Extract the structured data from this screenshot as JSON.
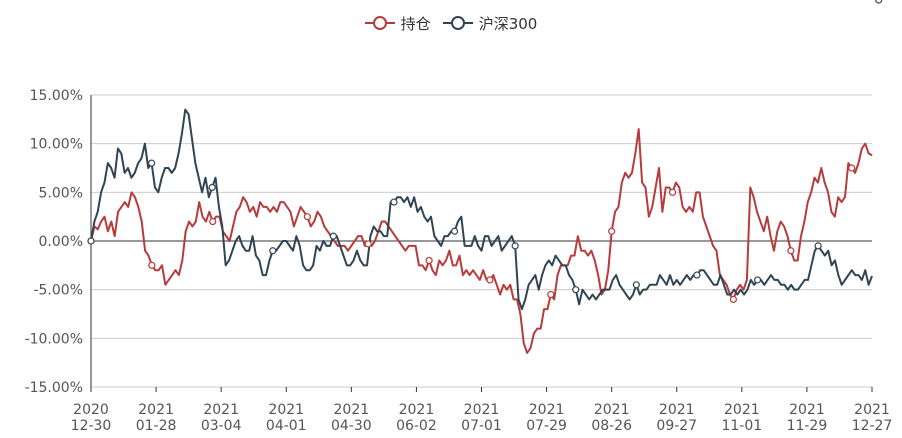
{
  "colors": {
    "series_holding": "#b83b3b",
    "series_csi300": "#2f4554",
    "axis": "#333333",
    "grid": "#cccccc",
    "label": "#555555",
    "background": "#ffffff"
  },
  "chart_data": {
    "type": "line",
    "title": "",
    "xlabel": "",
    "ylabel": "",
    "ylim": [
      -15,
      15
    ],
    "y_ticks": [
      15,
      10,
      5,
      0,
      -5,
      -10,
      -15
    ],
    "y_tick_labels": [
      "15.00%",
      "10.00%",
      "5.00%",
      "0.00%",
      "-5.00%",
      "-10.00%",
      "-15.00%"
    ],
    "x_ticks": [
      {
        "line1": "2020",
        "line2": "12-30"
      },
      {
        "line1": "2021",
        "line2": "01-28"
      },
      {
        "line1": "2021",
        "line2": "03-04"
      },
      {
        "line1": "2021",
        "line2": "04-01"
      },
      {
        "line1": "2021",
        "line2": "04-30"
      },
      {
        "line1": "2021",
        "line2": "06-02"
      },
      {
        "line1": "2021",
        "line2": "07-01"
      },
      {
        "line1": "2021",
        "line2": "07-29"
      },
      {
        "line1": "2021",
        "line2": "08-26"
      },
      {
        "line1": "2021",
        "line2": "09-27"
      },
      {
        "line1": "2021",
        "line2": "11-01"
      },
      {
        "line1": "2021",
        "line2": "11-29"
      },
      {
        "line1": "2021",
        "line2": "12-27"
      }
    ],
    "legend_position": "top-center",
    "series": [
      {
        "name": "持仓",
        "color_key": "series_holding",
        "values": [
          0,
          1.5,
          1.2,
          2.0,
          2.5,
          1.0,
          2.0,
          0.5,
          3.0,
          3.5,
          4.0,
          3.5,
          5.0,
          4.5,
          3.5,
          2.0,
          -1.0,
          -1.5,
          -2.5,
          -3.0,
          -3.0,
          -2.5,
          -4.5,
          -4.0,
          -3.5,
          -3.0,
          -3.5,
          -2.0,
          1.0,
          2.0,
          1.5,
          2.0,
          4.0,
          2.5,
          2.0,
          3.0,
          2.0,
          2.5,
          2.5,
          1.0,
          0.5,
          0,
          1.5,
          3.0,
          3.5,
          4.5,
          4.0,
          3.0,
          3.5,
          2.5,
          4.0,
          3.5,
          3.5,
          3.0,
          3.5,
          3.0,
          4.0,
          4.0,
          3.5,
          3.0,
          1.5,
          2.5,
          3.5,
          3.0,
          2.5,
          1.5,
          2.0,
          3.0,
          2.5,
          1.5,
          1.0,
          0.5,
          0,
          -0.5,
          -0.5,
          -0.5,
          -1.0,
          -0.5,
          0,
          0.5,
          0.5,
          -0.5,
          -0.3,
          -0.5,
          0,
          1.0,
          2.0,
          2.0,
          1.5,
          1.0,
          0.5,
          0,
          -0.5,
          -1.0,
          -0.5,
          -0.5,
          -0.5,
          -2.5,
          -2.5,
          -3.0,
          -2.0,
          -3.0,
          -3.5,
          -2.0,
          -2.5,
          -2.0,
          -1.0,
          -2.5,
          -2.5,
          -1.5,
          -3.5,
          -3.0,
          -3.5,
          -3.0,
          -3.5,
          -4.0,
          -3.0,
          -4.0,
          -4.0,
          -3.5,
          -4.5,
          -5.5,
          -4.5,
          -5.0,
          -4.5,
          -6.0,
          -6.0,
          -7.5,
          -10.5,
          -11.5,
          -11.0,
          -9.5,
          -9.0,
          -9.0,
          -7.0,
          -7.0,
          -5.5,
          -6.0,
          -3.5,
          -2.5,
          -2.5,
          -2.5,
          -1.5,
          -1.5,
          0.5,
          -1.0,
          -1.0,
          -1.5,
          -1.0,
          -2.0,
          -3.5,
          -5.5,
          -5.0,
          -3.0,
          1.0,
          3.0,
          3.5,
          6.0,
          7.0,
          6.5,
          7.0,
          9.0,
          11.5,
          6.0,
          5.5,
          2.5,
          3.5,
          5.5,
          7.5,
          3.0,
          5.5,
          5.5,
          5.0,
          6.0,
          5.5,
          3.5,
          3.0,
          3.5,
          3.0,
          5.0,
          5.0,
          2.5,
          1.5,
          0.5,
          -0.5,
          -1.0,
          -3.5,
          -4.0,
          -4.5,
          -5.5,
          -6.0,
          -5.0,
          -4.5,
          -5.0,
          -4.0,
          5.5,
          4.5,
          3.0,
          2.0,
          1.0,
          2.5,
          0.5,
          -1.0,
          1.0,
          2.0,
          1.5,
          0.5,
          -1.0,
          -2.0,
          -2.0,
          0.5,
          2.0,
          4.0,
          5.0,
          6.5,
          6.0,
          7.5,
          6.0,
          5.0,
          3.0,
          2.5,
          4.5,
          4.0,
          4.5,
          8.0,
          7.5,
          7.0,
          8.0,
          9.5,
          10.0,
          9.0,
          8.8
        ]
      },
      {
        "name": "沪深300",
        "color_key": "series_csi300",
        "values": [
          0,
          2.0,
          3.0,
          5.0,
          6.0,
          8.0,
          7.5,
          6.5,
          9.5,
          9.0,
          7.0,
          7.5,
          6.5,
          7.0,
          8.0,
          8.5,
          10.0,
          7.5,
          8.0,
          5.5,
          5.0,
          6.5,
          7.5,
          7.5,
          7.0,
          7.5,
          9.0,
          11.0,
          13.5,
          13.0,
          10.5,
          8.0,
          6.5,
          5.0,
          6.5,
          4.5,
          5.5,
          6.5,
          3.5,
          1.5,
          -2.5,
          -2.0,
          -1.0,
          0,
          0.5,
          -0.5,
          -1.0,
          -1.0,
          0.5,
          -1.5,
          -2.0,
          -3.5,
          -3.5,
          -2.0,
          -1.0,
          -1.0,
          -0.5,
          0,
          0,
          -0.5,
          -1.0,
          0.5,
          -0.5,
          -2.5,
          -3.0,
          -3.0,
          -2.5,
          -0.5,
          -1.0,
          0,
          -0.5,
          -0.5,
          0.5,
          0.5,
          -0.5,
          -1.5,
          -2.5,
          -2.5,
          -2.0,
          -1.0,
          -2.0,
          -2.5,
          -2.5,
          0.5,
          1.5,
          1.0,
          1.0,
          0.5,
          0.5,
          4.0,
          4.0,
          4.5,
          4.5,
          4.0,
          4.5,
          3.5,
          4.5,
          3.0,
          3.5,
          2.5,
          2.0,
          2.5,
          0.5,
          0,
          -0.5,
          0.5,
          0.5,
          1.0,
          1.0,
          2.0,
          2.5,
          -0.5,
          -0.5,
          -0.5,
          0.5,
          -0.5,
          -1.0,
          0.5,
          0.5,
          -0.5,
          0,
          0.5,
          -1.0,
          -0.5,
          0,
          0.5,
          -0.5,
          -6.0,
          -7.0,
          -6.0,
          -4.5,
          -4.0,
          -3.5,
          -5.0,
          -3.5,
          -2.5,
          -2.0,
          -2.5,
          -1.5,
          -2.0,
          -2.5,
          -2.5,
          -3.5,
          -4.0,
          -5.0,
          -6.5,
          -5.0,
          -5.5,
          -6.0,
          -5.5,
          -6.0,
          -5.5,
          -5.0,
          -5.0,
          -5.0,
          -4.0,
          -3.5,
          -4.5,
          -5.0,
          -5.5,
          -6.0,
          -5.5,
          -4.5,
          -5.5,
          -5.0,
          -5.0,
          -4.5,
          -4.5,
          -4.5,
          -3.5,
          -4.0,
          -4.5,
          -3.5,
          -4.5,
          -4.0,
          -4.5,
          -4.0,
          -3.5,
          -4.0,
          -3.5,
          -3.5,
          -3.0,
          -3.0,
          -3.5,
          -4.0,
          -4.5,
          -4.5,
          -3.5,
          -4.5,
          -5.5,
          -5.5,
          -5.0,
          -5.5,
          -5.0,
          -5.5,
          -5.0,
          -4.0,
          -4.5,
          -4.0,
          -4.0,
          -4.5,
          -4.0,
          -3.5,
          -4.0,
          -4.0,
          -4.5,
          -4.5,
          -5.0,
          -4.5,
          -5.0,
          -5.0,
          -4.5,
          -4.0,
          -4.0,
          -2.5,
          -1.0,
          -0.5,
          -1.0,
          -1.5,
          -1.0,
          -2.5,
          -2.0,
          -3.5,
          -4.5,
          -4.0,
          -3.5,
          -3.0,
          -3.5,
          -3.5,
          -4.0,
          -3.0,
          -4.5,
          -3.6
        ]
      }
    ],
    "markers": [
      {
        "series": 0,
        "indices": [
          0,
          18,
          36,
          64,
          82,
          100,
          118,
          136,
          154,
          172,
          190,
          207,
          225,
          244
        ]
      },
      {
        "series": 1,
        "indices": [
          0,
          18,
          36,
          54,
          72,
          90,
          108,
          126,
          144,
          162,
          180,
          198,
          216,
          234
        ]
      }
    ]
  }
}
